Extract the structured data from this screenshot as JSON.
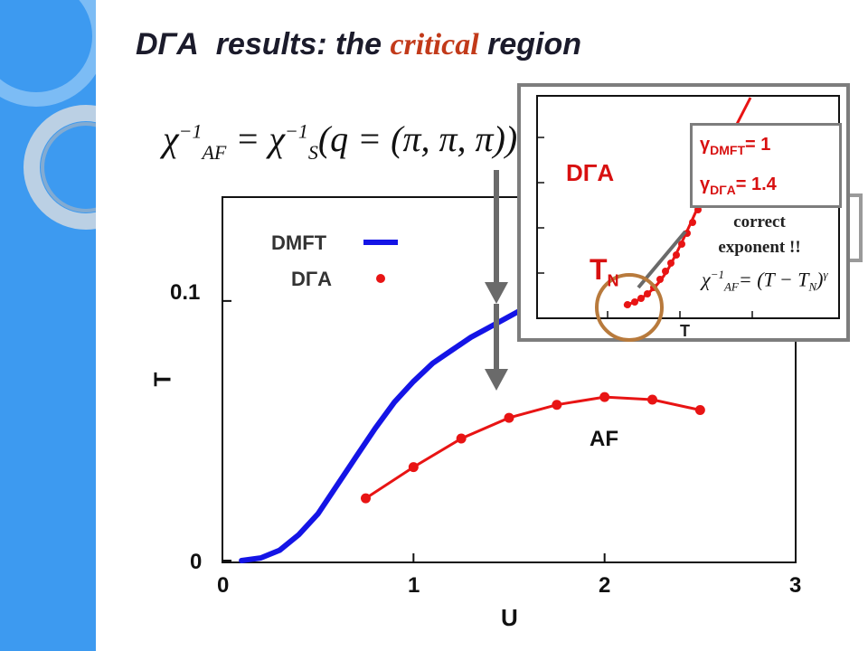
{
  "title": {
    "prefix": "DΓA",
    "mid": "results:  the ",
    "critical": "critical",
    "suffix": " region"
  },
  "formula": {
    "chi": "χ",
    "chi_sub_left": "AF",
    "inv": "−1",
    "eq": " = ",
    "chi_sub_right": "S",
    "arg": "(q = (π, π, π))"
  },
  "inset": {
    "dga_label": "DΓA",
    "tn_main": "T",
    "tn_sub": "N",
    "gamma_dmft_sym": "γ",
    "gamma_dmft_sub": "DMFT",
    "gamma_dmft_val": "= 1",
    "gamma_dga_sym": "γ",
    "gamma_dga_sub": "DΓA",
    "gamma_dga_val": "=  1.4",
    "correct_line1": "correct",
    "correct_line2": "exponent !!",
    "exponent_formula": "= (T − T",
    "exponent_formula_end": ")",
    "x_label": "T"
  },
  "colors": {
    "dmft": "#1414e6",
    "dga": "#e81414",
    "sidebar": "#3d9af0",
    "critical": "#c23a1a"
  },
  "chart_data": {
    "type": "line",
    "xlabel": "U",
    "ylabel": "T",
    "xlim": [
      0,
      3
    ],
    "ylim": [
      0,
      0.14
    ],
    "x_ticks": [
      "0",
      "1",
      "2",
      "3"
    ],
    "y_ticks": [
      "0",
      "0.1"
    ],
    "legend_position": "top-left",
    "series": [
      {
        "name": "DMFT",
        "style": "line",
        "x": [
          0.1,
          0.2,
          0.3,
          0.4,
          0.5,
          0.6,
          0.7,
          0.8,
          0.9,
          1.0,
          1.1,
          1.2,
          1.3,
          1.4,
          1.5,
          1.6,
          1.7
        ],
        "y": [
          0.0,
          0.001,
          0.004,
          0.01,
          0.018,
          0.029,
          0.04,
          0.051,
          0.061,
          0.069,
          0.076,
          0.081,
          0.086,
          0.09,
          0.094,
          0.098,
          0.103
        ]
      },
      {
        "name": "DΓA",
        "style": "line+points",
        "x": [
          0.75,
          1.0,
          1.25,
          1.5,
          1.75,
          2.0,
          2.25,
          2.5
        ],
        "y": [
          0.024,
          0.036,
          0.047,
          0.055,
          0.06,
          0.063,
          0.062,
          0.058
        ]
      }
    ],
    "annotations": [
      "AF"
    ]
  }
}
